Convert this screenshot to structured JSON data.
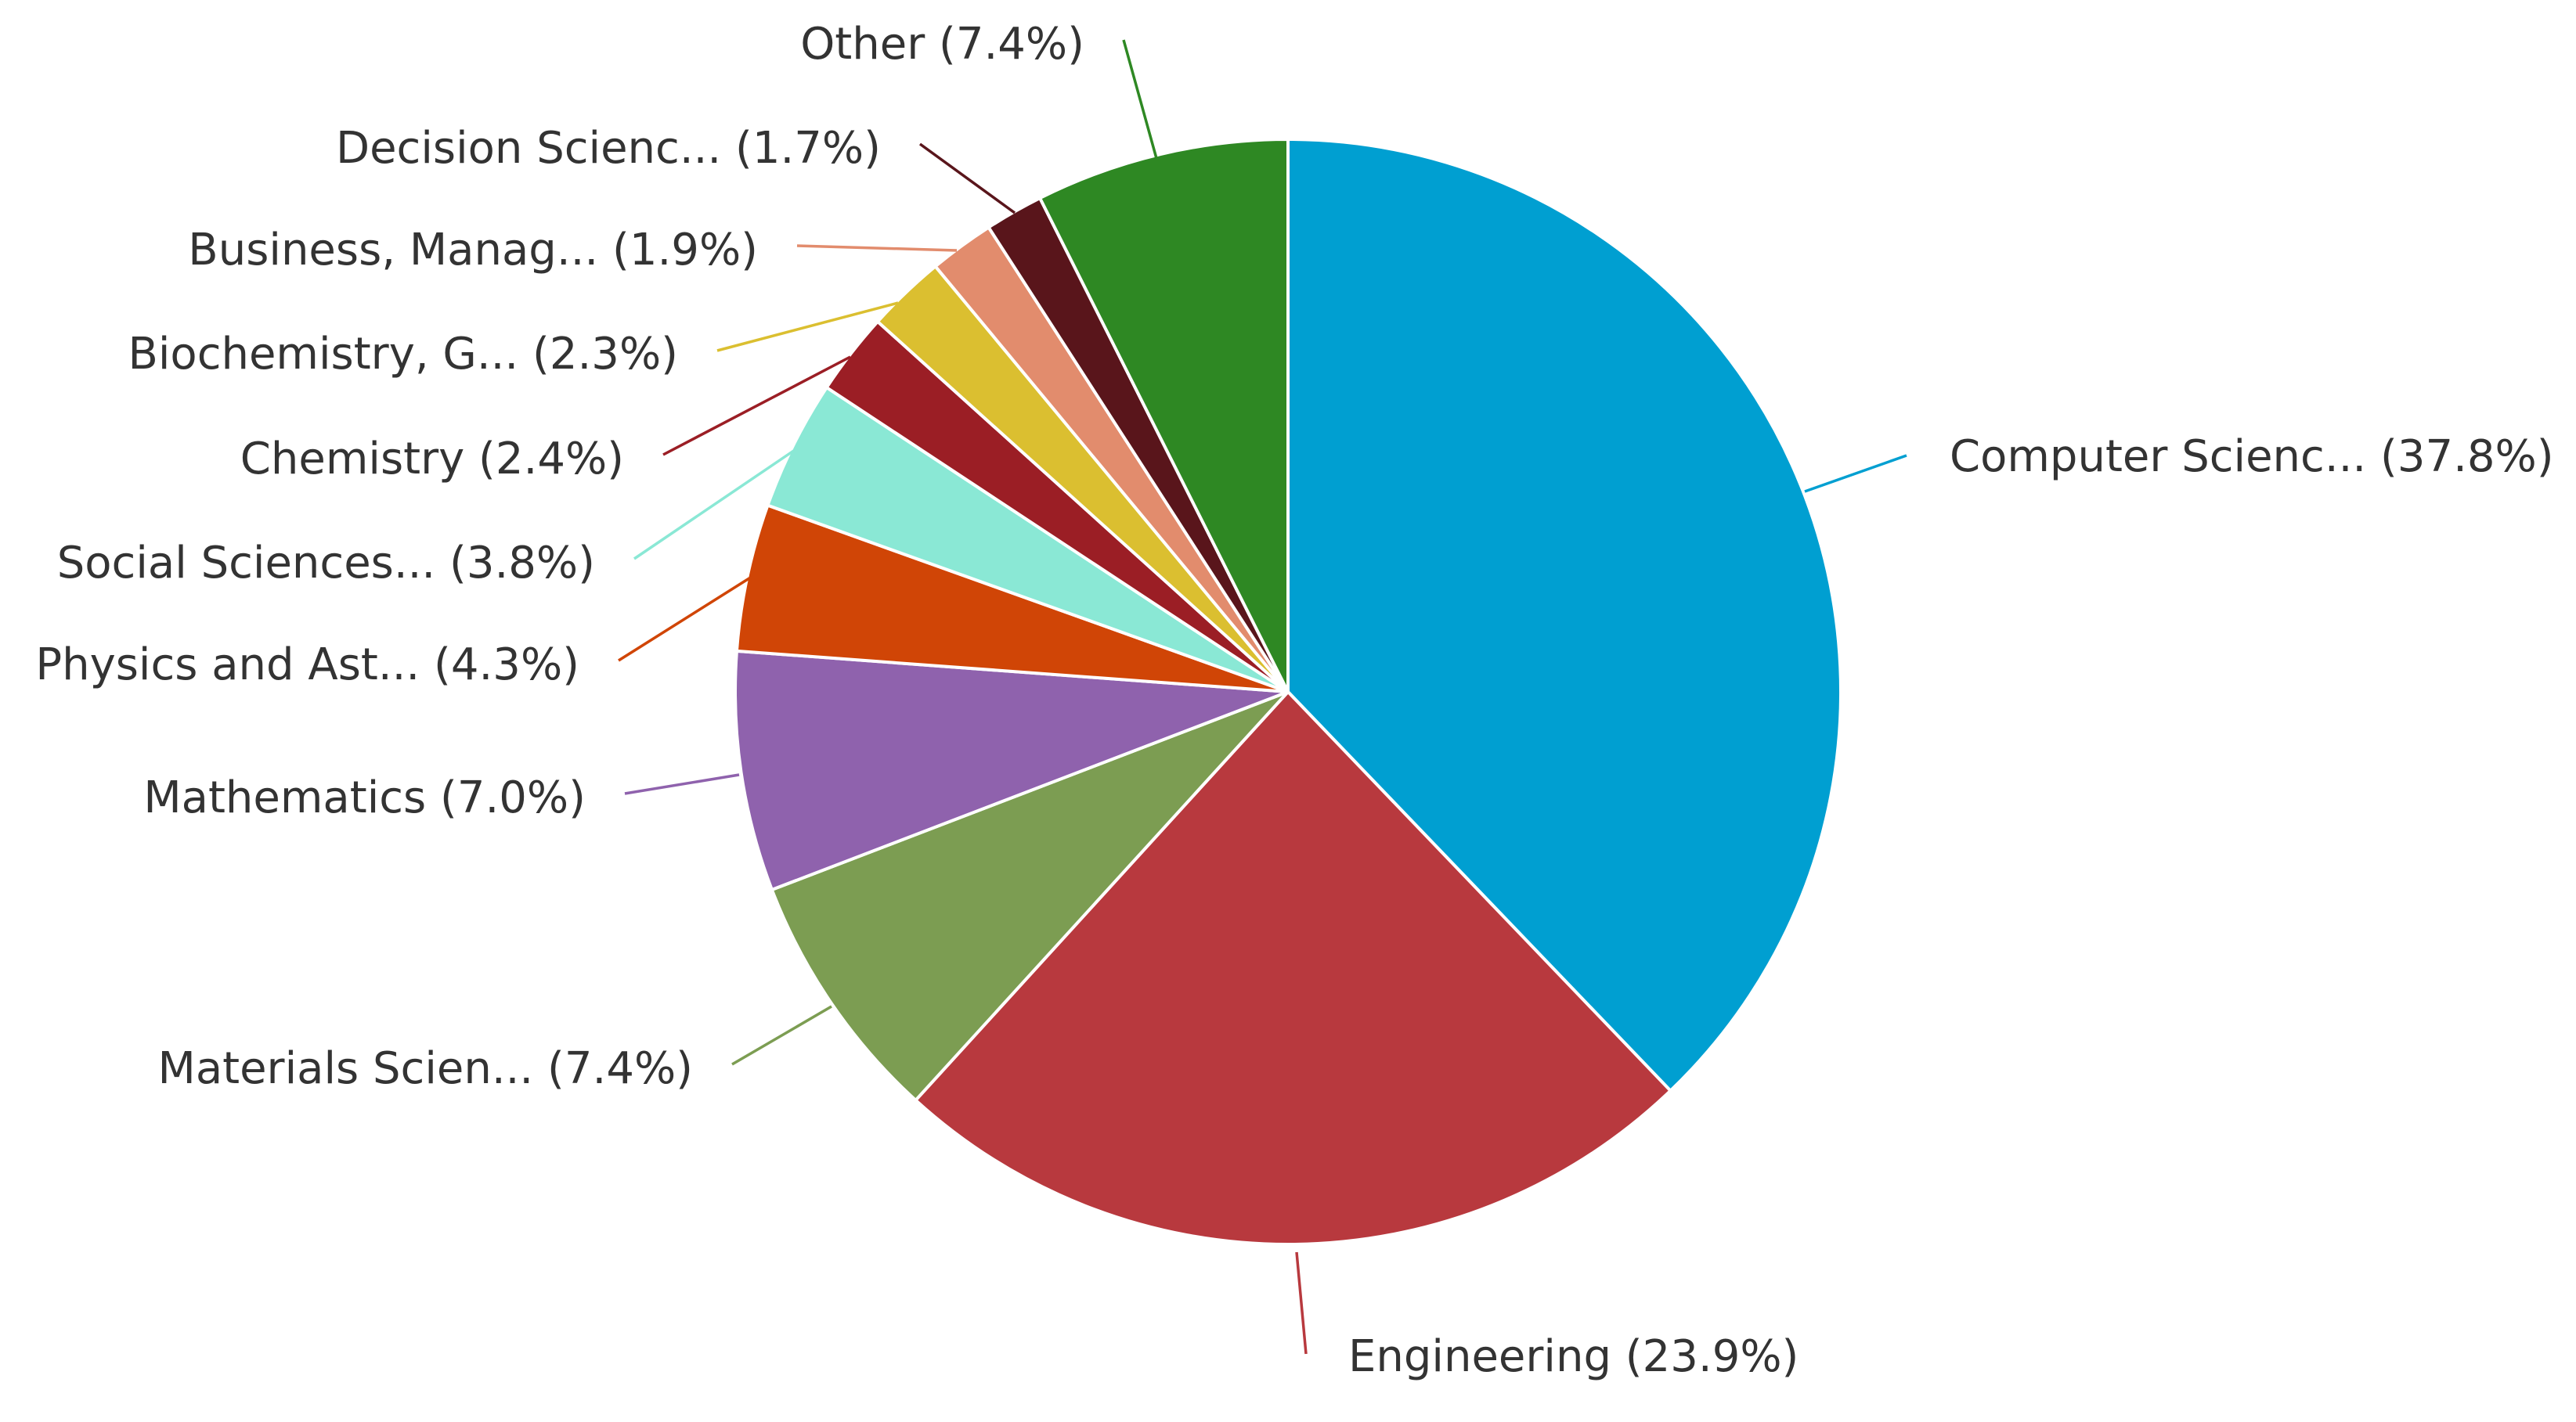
{
  "chart_data": {
    "type": "pie",
    "title": "",
    "start_angle": "12 o'clock",
    "direction": "clockwise",
    "slices": [
      {
        "name": "Computer Scienc...",
        "value": 37.8,
        "label": "Computer Scienc... (37.8%)",
        "color": "#009fd1"
      },
      {
        "name": "Engineering",
        "value": 23.9,
        "label": "Engineering (23.9%)",
        "color": "#b8393e"
      },
      {
        "name": "Materials Scien...",
        "value": 7.4,
        "label": "Materials Scien... (7.4%)",
        "color": "#7c9d52"
      },
      {
        "name": "Mathematics",
        "value": 7.0,
        "label": "Mathematics (7.0%)",
        "color": "#8f62ad"
      },
      {
        "name": "Physics and Ast...",
        "value": 4.3,
        "label": "Physics and Ast... (4.3%)",
        "color": "#d04506"
      },
      {
        "name": "Social Sciences...",
        "value": 3.8,
        "label": "Social Sciences... (3.8%)",
        "color": "#8ae8d5"
      },
      {
        "name": "Chemistry",
        "value": 2.4,
        "label": "Chemistry (2.4%)",
        "color": "#9b1e25"
      },
      {
        "name": "Biochemistry, G...",
        "value": 2.3,
        "label": "Biochemistry, G... (2.3%)",
        "color": "#dbbf30"
      },
      {
        "name": "Business, Manag...",
        "value": 1.9,
        "label": "Business, Manag... (1.9%)",
        "color": "#e28c6d"
      },
      {
        "name": "Decision Scienc...",
        "value": 1.7,
        "label": "Decision Scienc... (1.7%)",
        "color": "#59151b"
      },
      {
        "name": "Other",
        "value": 7.4,
        "label": "Other (7.4%)",
        "color": "#2e8823"
      }
    ]
  }
}
